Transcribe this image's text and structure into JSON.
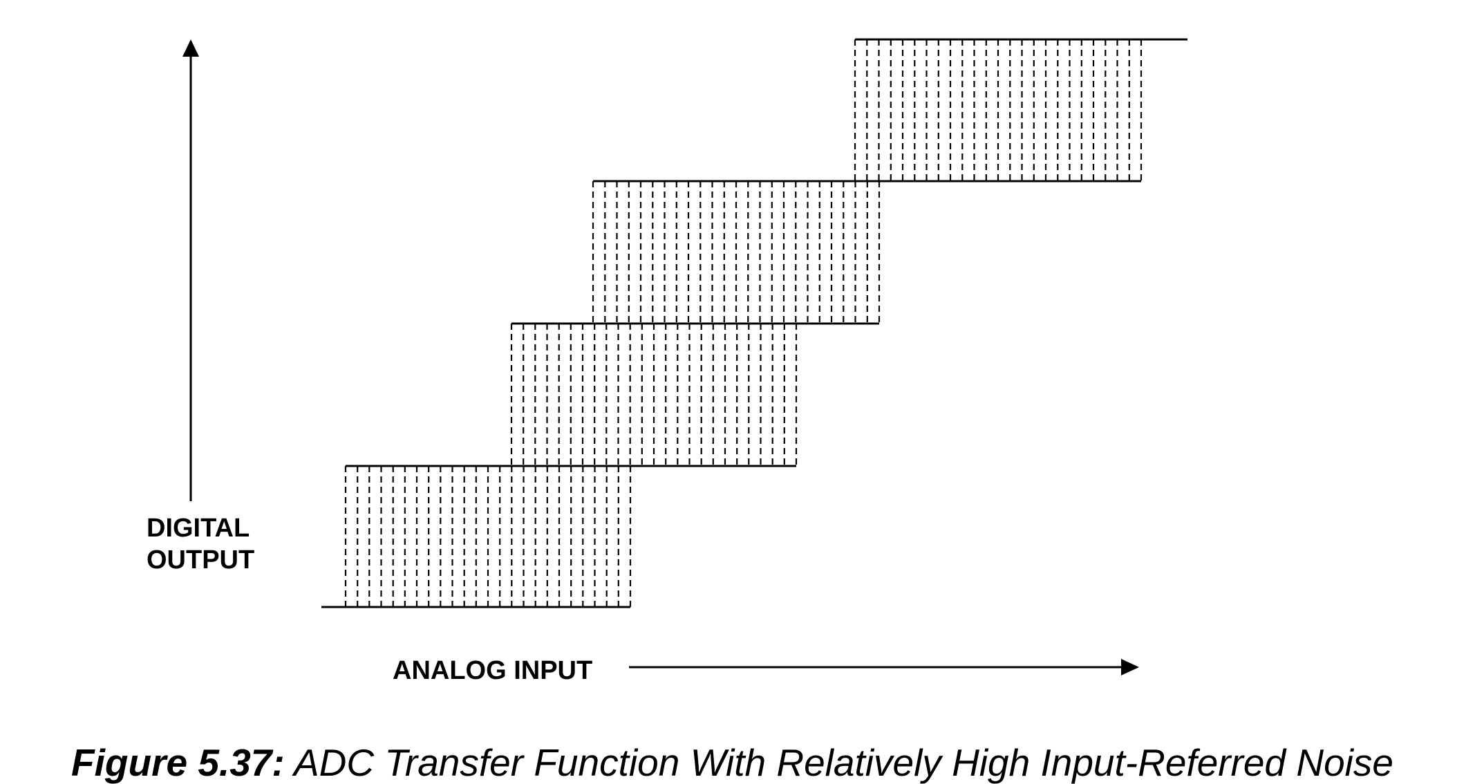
{
  "labels": {
    "y_axis_line1": "DIGITAL",
    "y_axis_line2": "OUTPUT",
    "x_axis": "ANALOG INPUT"
  },
  "caption": {
    "number": "Figure 5.37:",
    "text": " ADC Transfer Function With Relatively High Input-Referred Noise"
  },
  "diagram": {
    "levels": 5,
    "noisy_transitions": 4,
    "color": "#000000"
  }
}
